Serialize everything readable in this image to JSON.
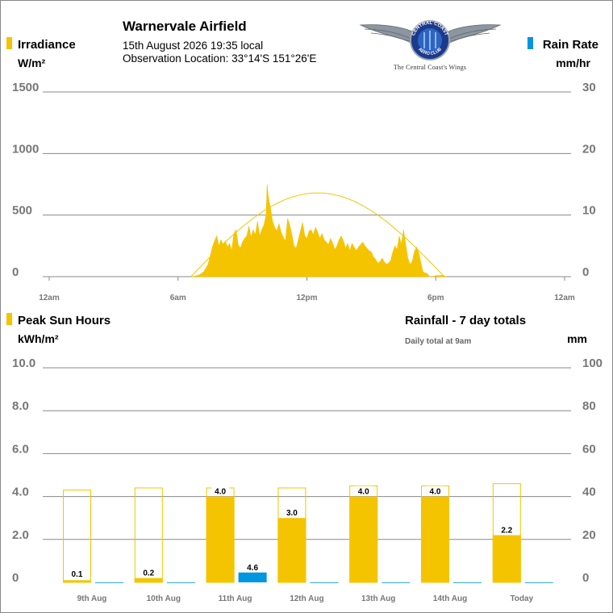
{
  "header": {
    "station": "Warnervale Airfield",
    "datetime": "15th August 2026  19:35 local",
    "location": "Observation Location: 33°14'S 151°26'E",
    "logo_ring_top": "CENTRAL COAST",
    "logo_ring_bottom": "AERO CLUB",
    "logo_tagline": "The Central Coast's Wings"
  },
  "colors": {
    "irradiance": "#f5c400",
    "rain": "#0096e0",
    "gridline": "#888888",
    "axis_text": "#777777",
    "clear_sky_curve": "#f5c400"
  },
  "chart_data": [
    {
      "type": "area",
      "legend_left": {
        "label": "Irradiance",
        "unit": "W/m²",
        "color": "#f5c400"
      },
      "legend_right": {
        "label": "Rain Rate",
        "unit": "mm/hr",
        "color": "#0096e0"
      },
      "y_left": {
        "ticks": [
          "1500",
          "1000",
          "500",
          "0"
        ],
        "range": [
          0,
          1500
        ]
      },
      "y_right": {
        "ticks": [
          "30",
          "20",
          "10",
          "0"
        ],
        "range": [
          0,
          30
        ]
      },
      "x": {
        "range_hours": [
          -0.3,
          24.3
        ],
        "ticks": [
          0,
          6,
          12,
          18,
          24
        ],
        "tick_labels": [
          "12am",
          "6am",
          "12pm",
          "6pm",
          "12am"
        ]
      },
      "series_irradiance": {
        "points": [
          [
            6.6,
            0
          ],
          [
            6.8,
            5
          ],
          [
            7.0,
            15
          ],
          [
            7.2,
            40
          ],
          [
            7.4,
            100
          ],
          [
            7.5,
            170
          ],
          [
            7.6,
            240
          ],
          [
            7.7,
            290
          ],
          [
            7.8,
            330
          ],
          [
            7.9,
            250
          ],
          [
            8.0,
            300
          ],
          [
            8.1,
            260
          ],
          [
            8.2,
            290
          ],
          [
            8.3,
            240
          ],
          [
            8.4,
            270
          ],
          [
            8.5,
            210
          ],
          [
            8.6,
            350
          ],
          [
            8.7,
            380
          ],
          [
            8.8,
            260
          ],
          [
            8.9,
            230
          ],
          [
            9.0,
            280
          ],
          [
            9.1,
            310
          ],
          [
            9.2,
            330
          ],
          [
            9.3,
            410
          ],
          [
            9.4,
            320
          ],
          [
            9.5,
            380
          ],
          [
            9.6,
            340
          ],
          [
            9.7,
            450
          ],
          [
            9.8,
            330
          ],
          [
            9.9,
            380
          ],
          [
            10.0,
            420
          ],
          [
            10.1,
            500
          ],
          [
            10.15,
            750
          ],
          [
            10.2,
            650
          ],
          [
            10.3,
            560
          ],
          [
            10.4,
            450
          ],
          [
            10.5,
            400
          ],
          [
            10.6,
            370
          ],
          [
            10.7,
            430
          ],
          [
            10.8,
            360
          ],
          [
            10.9,
            320
          ],
          [
            11.0,
            290
          ],
          [
            11.1,
            470
          ],
          [
            11.2,
            420
          ],
          [
            11.3,
            340
          ],
          [
            11.4,
            250
          ],
          [
            11.5,
            230
          ],
          [
            11.6,
            300
          ],
          [
            11.7,
            370
          ],
          [
            11.8,
            440
          ],
          [
            11.9,
            330
          ],
          [
            12.0,
            310
          ],
          [
            12.1,
            370
          ],
          [
            12.2,
            380
          ],
          [
            12.3,
            340
          ],
          [
            12.4,
            400
          ],
          [
            12.5,
            360
          ],
          [
            12.6,
            310
          ],
          [
            12.7,
            350
          ],
          [
            12.8,
            300
          ],
          [
            12.9,
            280
          ],
          [
            13.0,
            260
          ],
          [
            13.1,
            310
          ],
          [
            13.2,
            270
          ],
          [
            13.3,
            220
          ],
          [
            13.4,
            250
          ],
          [
            13.5,
            300
          ],
          [
            13.6,
            330
          ],
          [
            13.7,
            290
          ],
          [
            13.8,
            230
          ],
          [
            13.9,
            270
          ],
          [
            14.0,
            210
          ],
          [
            14.1,
            270
          ],
          [
            14.2,
            240
          ],
          [
            14.3,
            210
          ],
          [
            14.4,
            240
          ],
          [
            14.5,
            260
          ],
          [
            14.6,
            280
          ],
          [
            14.7,
            250
          ],
          [
            14.8,
            230
          ],
          [
            14.9,
            210
          ],
          [
            15.0,
            200
          ],
          [
            15.1,
            160
          ],
          [
            15.2,
            140
          ],
          [
            15.3,
            110
          ],
          [
            15.4,
            120
          ],
          [
            15.5,
            150
          ],
          [
            15.6,
            120
          ],
          [
            15.7,
            100
          ],
          [
            15.8,
            110
          ],
          [
            15.9,
            130
          ],
          [
            16.0,
            200
          ],
          [
            16.1,
            250
          ],
          [
            16.2,
            220
          ],
          [
            16.3,
            330
          ],
          [
            16.4,
            260
          ],
          [
            16.5,
            380
          ],
          [
            16.6,
            260
          ],
          [
            16.7,
            150
          ],
          [
            16.8,
            100
          ],
          [
            16.9,
            120
          ],
          [
            17.0,
            200
          ],
          [
            17.1,
            240
          ],
          [
            17.2,
            200
          ],
          [
            17.3,
            120
          ],
          [
            17.4,
            40
          ],
          [
            17.5,
            30
          ],
          [
            17.6,
            25
          ],
          [
            17.7,
            0
          ],
          [
            17.8,
            0
          ],
          [
            18.0,
            8
          ],
          [
            18.3,
            10
          ],
          [
            18.5,
            0
          ]
        ]
      },
      "series_clear_sky": {
        "sunrise_hour": 6.6,
        "sunset_hour": 18.4,
        "peak": 680
      },
      "series_rain_rate": {
        "points": []
      }
    },
    {
      "type": "bar",
      "legend_left": {
        "label": "Peak Sun Hours",
        "unit": "kWh/m²",
        "color": "#f5c400"
      },
      "title_right": "Rainfall - 7 day totals",
      "note_right": "Daily total at 9am",
      "unit_right": "mm",
      "y_left": {
        "ticks": [
          "10.0",
          "8.0",
          "6.0",
          "4.0",
          "2.0",
          "0"
        ],
        "range": [
          0,
          10
        ]
      },
      "y_right": {
        "ticks": [
          "100",
          "80",
          "60",
          "40",
          "20",
          "0"
        ],
        "range": [
          0,
          100
        ]
      },
      "categories": [
        "9th Aug",
        "10th Aug",
        "11th Aug",
        "12th Aug",
        "13th Aug",
        "14th Aug",
        "Today"
      ],
      "peak_sun_hours": [
        0.1,
        0.2,
        4.0,
        3.0,
        4.0,
        4.0,
        2.2
      ],
      "peak_sun_labels": [
        "0.1",
        "0.2",
        "4.0",
        "3.0",
        "4.0",
        "4.0",
        "2.2"
      ],
      "clear_sky_potential": [
        4.3,
        4.4,
        4.4,
        4.4,
        4.5,
        4.5,
        4.6
      ],
      "rainfall_mm": [
        0,
        0,
        4.6,
        0,
        0,
        0,
        0
      ],
      "rainfall_labels": [
        "",
        "",
        "4.6",
        "",
        "",
        "",
        ""
      ]
    }
  ]
}
